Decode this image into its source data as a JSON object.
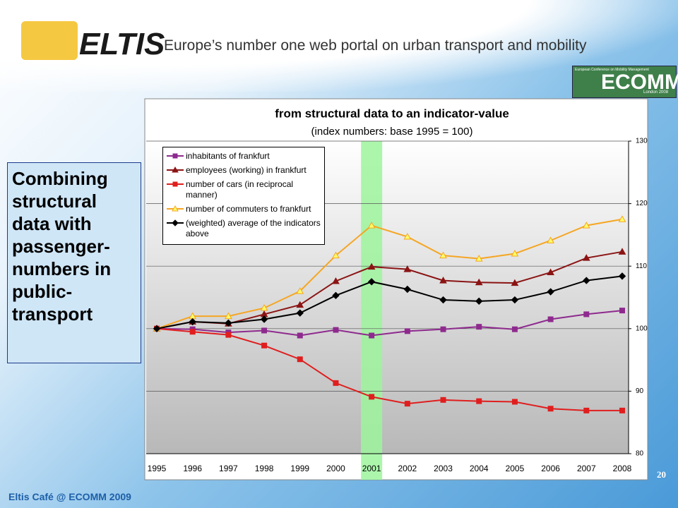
{
  "header": {
    "logo": "ELTIS",
    "tagline": "Europe’s number one web portal on urban transport and mobility",
    "badge_small": "European Conference on Mobility Management",
    "badge": "ECOMM",
    "badge_sub": "London 2008"
  },
  "side_text": "Combining structural data with passenger-numbers in public-transport",
  "footer": "Eltis Café @ ECOMM 2009",
  "slide_number": "20",
  "chart_data": {
    "type": "line",
    "title": "from structural data to an indicator-value",
    "subtitle": "(index numbers: base 1995 = 100)",
    "categories": [
      "1995",
      "1996",
      "1997",
      "1998",
      "1999",
      "2000",
      "2001",
      "2002",
      "2003",
      "2004",
      "2005",
      "2006",
      "2007",
      "2008"
    ],
    "highlight_category": "2001",
    "highlight_color": "#9ef59e",
    "ylim": [
      80,
      130
    ],
    "yticks": [
      80,
      90,
      100,
      110,
      120,
      130
    ],
    "y_axis_side": "right",
    "grid": true,
    "legend_position": "upper left",
    "series": [
      {
        "name": "inhabitants of frankfurt",
        "color": "#8e2a8e",
        "marker": "square",
        "marker_fill": "#8e2a8e",
        "values": [
          100,
          99.9,
          99.4,
          99.7,
          98.9,
          99.8,
          98.9,
          99.6,
          99.9,
          100.3,
          99.9,
          101.5,
          102.3,
          102.9
        ]
      },
      {
        "name": "employees (working) in frankfurt",
        "color": "#8b1414",
        "marker": "triangle",
        "marker_fill": "#8b1414",
        "values": [
          100,
          101.1,
          100.8,
          102.3,
          103.8,
          107.6,
          109.9,
          109.5,
          107.7,
          107.4,
          107.3,
          109.0,
          111.3,
          112.3
        ]
      },
      {
        "name": "number of cars (in reciprocal manner)",
        "color": "#e01e1e",
        "marker": "square",
        "marker_fill": "#e01e1e",
        "values": [
          100,
          99.5,
          99.0,
          97.3,
          95.1,
          91.3,
          89.1,
          88.0,
          88.6,
          88.4,
          88.3,
          87.2,
          86.9,
          86.9
        ]
      },
      {
        "name": "number of commuters to frankfurt",
        "color": "#f5a623",
        "marker": "triangle",
        "marker_fill": "#ffff66",
        "values": [
          100,
          102.0,
          102.0,
          103.3,
          106.0,
          111.7,
          116.5,
          114.7,
          111.7,
          111.2,
          112.0,
          114.1,
          116.5,
          117.5
        ]
      },
      {
        "name": "(weighted) average of the indicators above",
        "color": "#000000",
        "marker": "diamond",
        "marker_fill": "#000000",
        "values": [
          100,
          101.1,
          100.9,
          101.5,
          102.5,
          105.3,
          107.5,
          106.3,
          104.6,
          104.4,
          104.6,
          105.9,
          107.7,
          108.4
        ]
      }
    ]
  }
}
